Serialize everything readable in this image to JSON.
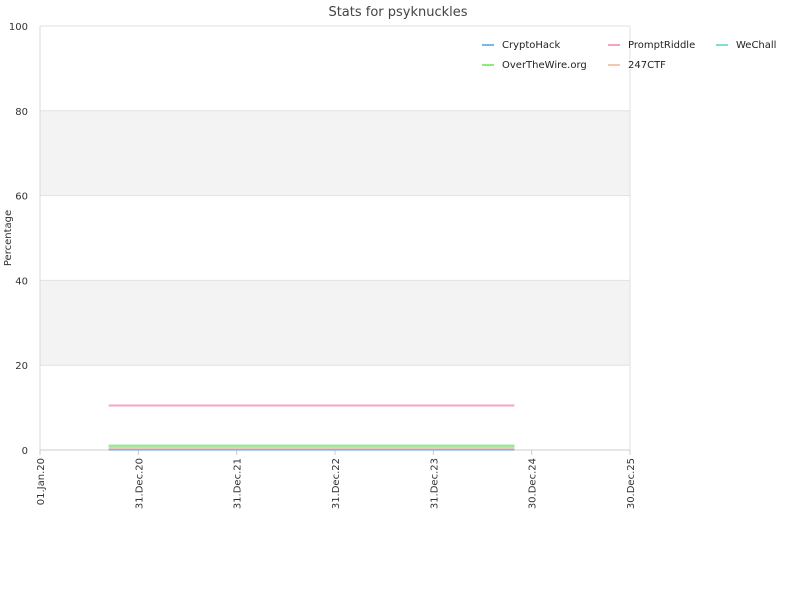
{
  "chart_data": {
    "type": "line",
    "title": "Stats for psyknuckles",
    "xlabel": "",
    "ylabel": "Percentage",
    "xlim": [
      "2020-01-01",
      "2025-12-30"
    ],
    "ylim": [
      0,
      100
    ],
    "y_ticks": [
      0,
      20,
      40,
      60,
      80,
      100
    ],
    "x_ticks": [
      {
        "date": "2020-01-01",
        "label": "01.Jan.20"
      },
      {
        "date": "2020-12-31",
        "label": "31.Dec.20"
      },
      {
        "date": "2021-12-31",
        "label": "31.Dec.21"
      },
      {
        "date": "2022-12-31",
        "label": "31.Dec.22"
      },
      {
        "date": "2023-12-31",
        "label": "31.Dec.23"
      },
      {
        "date": "2024-12-30",
        "label": "30.Dec.24"
      },
      {
        "date": "2025-12-30",
        "label": "30.Dec.25"
      }
    ],
    "grid": true,
    "alternating_bands": true,
    "legend_position": "top-right",
    "series": [
      {
        "name": "CryptoHack",
        "color": "#7cb5ec",
        "x": [
          "2020-09-12",
          "2024-10-27"
        ],
        "y": [
          0.1,
          0.1
        ]
      },
      {
        "name": "PromptRiddle",
        "color": "#f7a1c4",
        "x": [
          "2020-09-12",
          "2024-10-27"
        ],
        "y": [
          10.5,
          10.5
        ]
      },
      {
        "name": "WeChall",
        "color": "#7fe0d0",
        "x": [
          "2020-09-12",
          "2024-10-27"
        ],
        "y": [
          1.0,
          1.0
        ]
      },
      {
        "name": "OverTheWire.org",
        "color": "#90ed7d",
        "x": [
          "2020-09-12",
          "2020-12-31",
          "2024-10-27"
        ],
        "y": [
          1.0,
          1.0,
          1.0
        ]
      },
      {
        "name": "247CTF",
        "color": "#f4c6b4",
        "x": [
          "2020-09-12",
          "2024-10-27"
        ],
        "y": [
          0.5,
          0.5
        ]
      }
    ]
  }
}
